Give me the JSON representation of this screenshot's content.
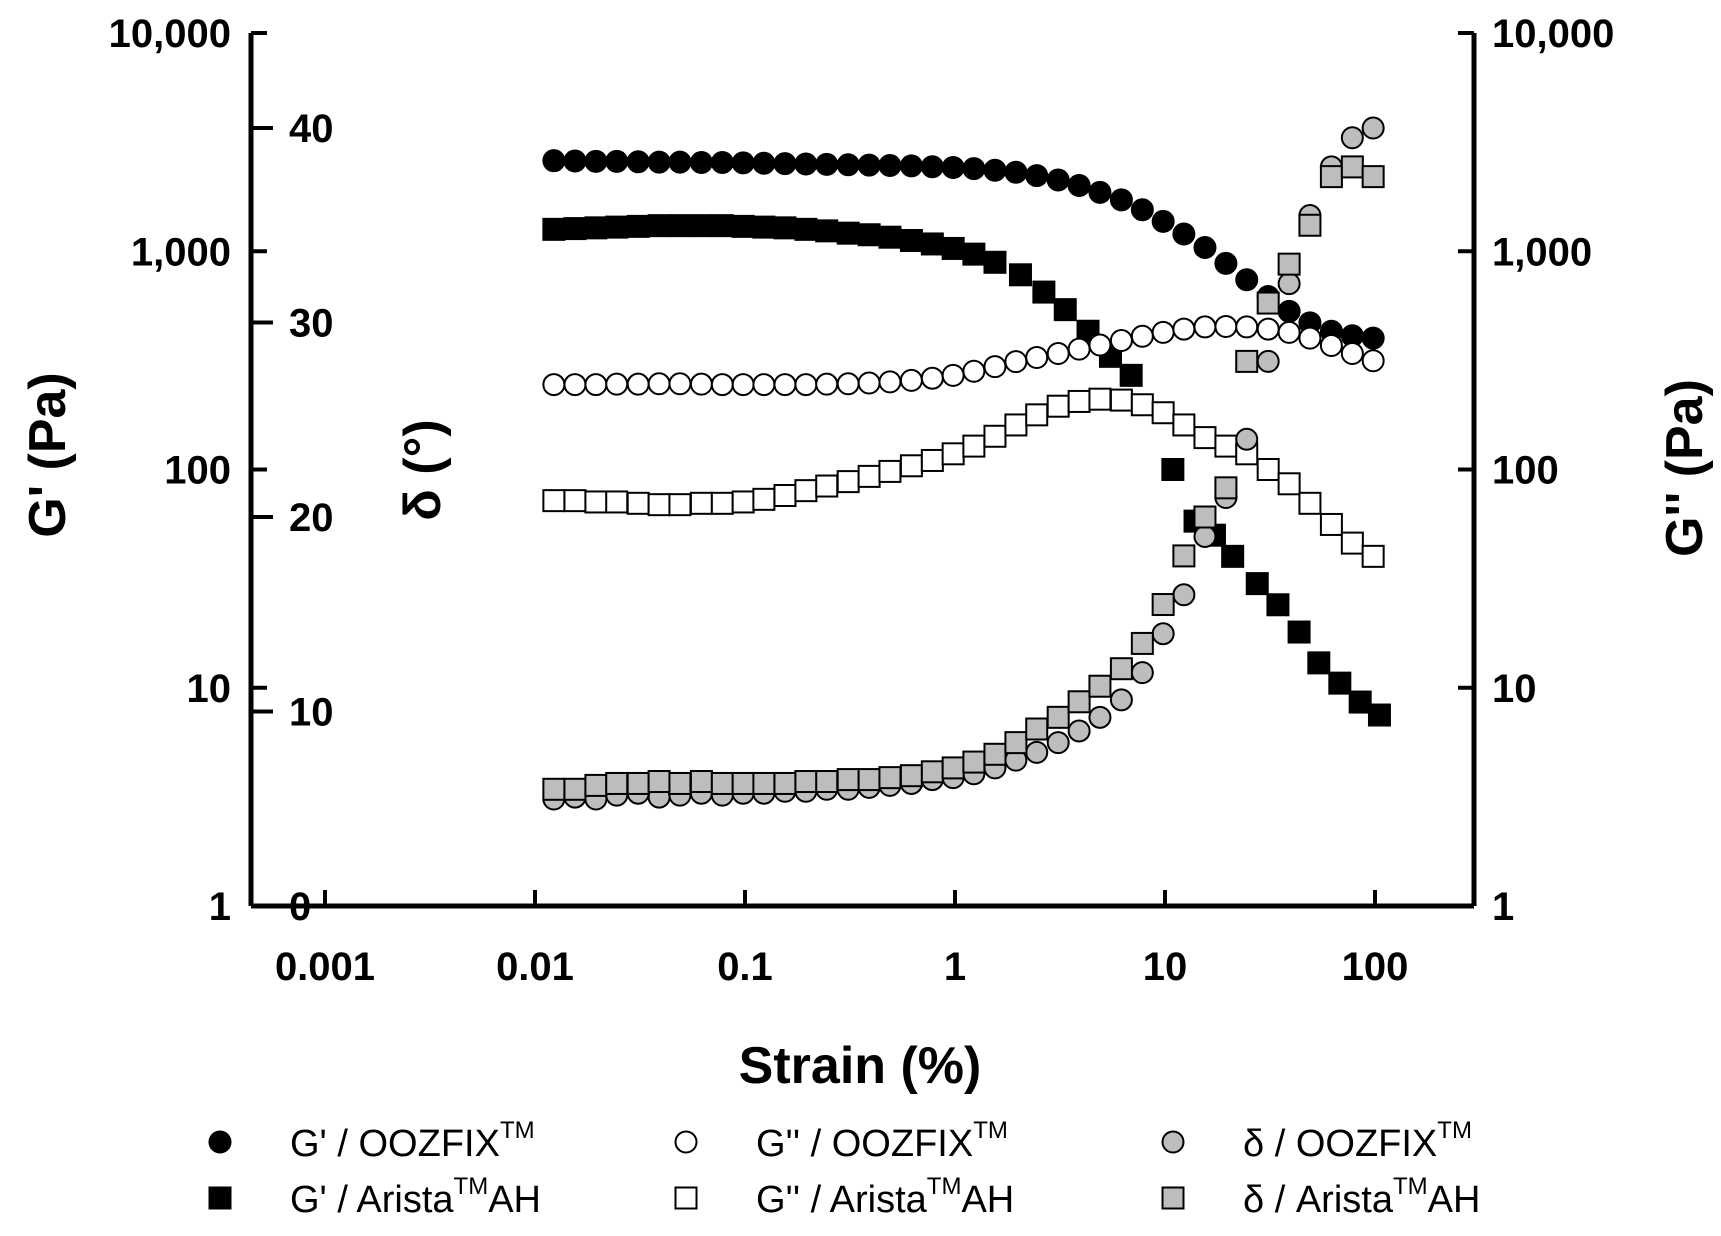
{
  "chart_data": {
    "type": "scatter",
    "x_label": "Strain (%)",
    "x_scale": "log",
    "x_range": [
      0.0003,
      300
    ],
    "x_ticks": [
      "0.001",
      "0.01",
      "0.1",
      "1",
      "10",
      "100"
    ],
    "left_axis_label": "G' (Pa)",
    "right_axis_label": "G'' (Pa)",
    "delta_axis_label": "δ (°)",
    "modulus_scale": "log",
    "modulus_range": [
      1,
      10000
    ],
    "modulus_ticks": [
      "1",
      "10",
      "100",
      "1,000",
      "10,000"
    ],
    "delta_range": [
      0,
      45
    ],
    "delta_ticks": [
      "0",
      "10",
      "20",
      "30",
      "40"
    ],
    "grid": false,
    "series": [
      {
        "name": "G' / OOZFIX",
        "name_main": "G' / OOZFIX",
        "name_sup": "TM",
        "name_tail": "",
        "axis": "modulus",
        "marker": "circle",
        "fill": "#000000",
        "x": [
          0.0123,
          0.0155,
          0.0195,
          0.0245,
          0.031,
          0.039,
          0.049,
          0.062,
          0.078,
          0.098,
          0.123,
          0.155,
          0.195,
          0.245,
          0.31,
          0.39,
          0.49,
          0.62,
          0.78,
          0.98,
          1.23,
          1.55,
          1.95,
          2.45,
          3.1,
          3.9,
          4.9,
          6.2,
          7.8,
          9.8,
          12.3,
          15.5,
          19.5,
          24.5,
          31,
          39,
          49,
          62,
          78,
          98
        ],
        "y": [
          2600,
          2590,
          2580,
          2580,
          2570,
          2560,
          2560,
          2550,
          2550,
          2540,
          2530,
          2520,
          2510,
          2500,
          2490,
          2480,
          2470,
          2460,
          2440,
          2420,
          2390,
          2350,
          2300,
          2220,
          2120,
          2000,
          1860,
          1720,
          1550,
          1370,
          1200,
          1040,
          880,
          740,
          620,
          530,
          470,
          430,
          410,
          400
        ]
      },
      {
        "name": "G' / Arista AH",
        "name_main": "G' / Arista",
        "name_sup": "TM",
        "name_tail": "AH",
        "axis": "modulus",
        "marker": "square",
        "fill": "#000000",
        "x": [
          0.0123,
          0.0155,
          0.0195,
          0.0245,
          0.031,
          0.039,
          0.049,
          0.062,
          0.078,
          0.098,
          0.123,
          0.155,
          0.195,
          0.245,
          0.31,
          0.39,
          0.49,
          0.62,
          0.78,
          0.98,
          1.23,
          1.55,
          2.05,
          2.65,
          3.35,
          4.3,
          5.5,
          6.9,
          10.9,
          13.9,
          17.2,
          21,
          27.5,
          34.5,
          43.5,
          54,
          68,
          85,
          105
        ],
        "y": [
          1260,
          1270,
          1280,
          1290,
          1300,
          1310,
          1310,
          1310,
          1310,
          1300,
          1290,
          1280,
          1260,
          1240,
          1210,
          1190,
          1160,
          1120,
          1080,
          1030,
          970,
          890,
          780,
          650,
          540,
          430,
          330,
          270,
          100,
          58,
          50,
          40,
          30,
          24,
          18,
          13,
          10.5,
          8.6,
          7.5
        ]
      },
      {
        "name": "G'' / OOZFIX",
        "name_main": "G'' / OOZFIX",
        "name_sup": "TM",
        "name_tail": "",
        "axis": "modulus",
        "marker": "circle",
        "fill": "#ffffff",
        "x": [
          0.0123,
          0.0155,
          0.0195,
          0.0245,
          0.031,
          0.039,
          0.049,
          0.062,
          0.078,
          0.098,
          0.123,
          0.155,
          0.195,
          0.245,
          0.31,
          0.39,
          0.49,
          0.62,
          0.78,
          0.98,
          1.23,
          1.55,
          1.95,
          2.45,
          3.1,
          3.9,
          4.9,
          6.2,
          7.8,
          9.8,
          12.3,
          15.5,
          19.5,
          24.5,
          31,
          39,
          49,
          62,
          78,
          98
        ],
        "y": [
          245,
          245,
          245,
          246,
          246,
          247,
          247,
          246,
          245,
          245,
          245,
          245,
          245,
          246,
          247,
          249,
          252,
          256,
          262,
          270,
          282,
          296,
          312,
          326,
          340,
          356,
          372,
          390,
          408,
          425,
          440,
          450,
          452,
          450,
          440,
          425,
          400,
          370,
          340,
          315
        ]
      },
      {
        "name": "G'' / Arista AH",
        "name_main": "G'' / Arista",
        "name_sup": "TM",
        "name_tail": "AH",
        "axis": "modulus",
        "marker": "square",
        "fill": "#ffffff",
        "x": [
          0.0123,
          0.0155,
          0.0195,
          0.0245,
          0.031,
          0.039,
          0.049,
          0.062,
          0.078,
          0.098,
          0.123,
          0.155,
          0.195,
          0.245,
          0.31,
          0.39,
          0.49,
          0.62,
          0.78,
          0.98,
          1.23,
          1.55,
          1.95,
          2.45,
          3.1,
          3.9,
          4.9,
          6.2,
          7.8,
          9.8,
          12.3,
          15.5,
          19.5,
          24.5,
          31,
          39,
          49,
          62,
          78,
          98
        ],
        "y": [
          72,
          72,
          71,
          71,
          70,
          69,
          69,
          70,
          70,
          71,
          73,
          76,
          80,
          84,
          88,
          93,
          98,
          104,
          110,
          118,
          128,
          142,
          160,
          178,
          195,
          205,
          210,
          208,
          198,
          182,
          160,
          140,
          128,
          118,
          100,
          86,
          70,
          56,
          46,
          40
        ]
      },
      {
        "name": "δ / OOZFIX",
        "name_main": "δ / OOZFIX",
        "name_sup": "TM",
        "name_tail": "",
        "axis": "delta",
        "marker": "circle",
        "fill": "#bdbdbd",
        "x": [
          0.0123,
          0.0155,
          0.0195,
          0.0245,
          0.031,
          0.039,
          0.049,
          0.062,
          0.078,
          0.098,
          0.123,
          0.155,
          0.195,
          0.245,
          0.31,
          0.39,
          0.49,
          0.62,
          0.78,
          0.98,
          1.23,
          1.55,
          1.95,
          2.45,
          3.1,
          3.9,
          4.9,
          6.2,
          7.8,
          9.8,
          12.3,
          15.5,
          19.5,
          24.5,
          31,
          39,
          49,
          62,
          78,
          98
        ],
        "y": [
          5.5,
          5.6,
          5.5,
          5.7,
          5.8,
          5.6,
          5.7,
          5.8,
          5.7,
          5.8,
          5.8,
          5.9,
          5.9,
          6.0,
          6.0,
          6.1,
          6.2,
          6.3,
          6.5,
          6.6,
          6.8,
          7.1,
          7.5,
          7.9,
          8.4,
          9.0,
          9.7,
          10.6,
          12.0,
          14.0,
          16.0,
          19.0,
          21.0,
          24.0,
          28.0,
          32.0,
          35.5,
          38.0,
          39.5,
          40.0
        ]
      },
      {
        "name": "δ / Arista AH",
        "name_main": "δ / Arista",
        "name_sup": "TM",
        "name_tail": "AH",
        "axis": "delta",
        "marker": "square",
        "fill": "#bdbdbd",
        "x": [
          0.0123,
          0.0155,
          0.0195,
          0.0245,
          0.031,
          0.039,
          0.049,
          0.062,
          0.078,
          0.098,
          0.123,
          0.155,
          0.195,
          0.245,
          0.31,
          0.39,
          0.49,
          0.62,
          0.78,
          0.98,
          1.23,
          1.55,
          1.95,
          2.45,
          3.1,
          3.9,
          4.9,
          6.2,
          7.8,
          9.8,
          12.3,
          15.5,
          19.5,
          24.5,
          31,
          39,
          49,
          62,
          78,
          98
        ],
        "y": [
          6.0,
          6.0,
          6.2,
          6.3,
          6.3,
          6.4,
          6.3,
          6.4,
          6.3,
          6.3,
          6.3,
          6.3,
          6.4,
          6.4,
          6.5,
          6.5,
          6.6,
          6.7,
          6.9,
          7.1,
          7.4,
          7.8,
          8.4,
          9.1,
          9.7,
          10.5,
          11.3,
          12.2,
          13.5,
          15.5,
          18.0,
          20.0,
          21.5,
          28.0,
          31.0,
          33.0,
          35.0,
          37.5,
          38.0,
          37.5
        ]
      }
    ]
  }
}
